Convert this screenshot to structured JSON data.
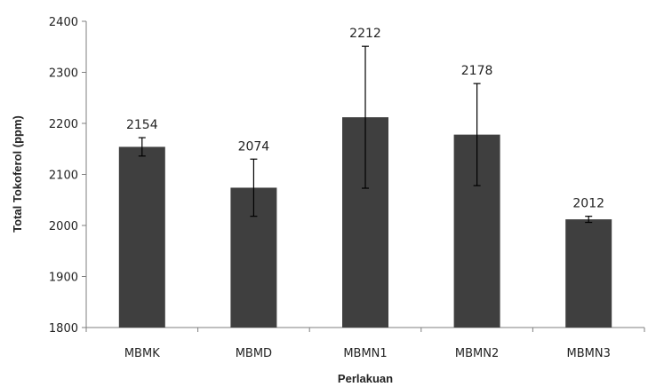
{
  "chart_data": {
    "type": "bar",
    "title": "",
    "xlabel": "Perlakuan",
    "ylabel": "Total Tokoferol (ppm)",
    "ylim": [
      1800,
      2400
    ],
    "ystep": 100,
    "grid": false,
    "bar_color": "#3f3f3f",
    "categories": [
      "MBMK",
      "MBMD",
      "MBMN1",
      "MBMN2",
      "MBMN3"
    ],
    "values": [
      2154,
      2074,
      2212,
      2178,
      2012
    ],
    "value_labels": [
      "2154",
      "2074",
      "2212",
      "2178",
      "2012"
    ],
    "error": [
      18,
      56,
      139,
      100,
      6
    ],
    "ytick_labels": [
      "1800",
      "1900",
      "2000",
      "2100",
      "2200",
      "2300",
      "2400"
    ]
  }
}
